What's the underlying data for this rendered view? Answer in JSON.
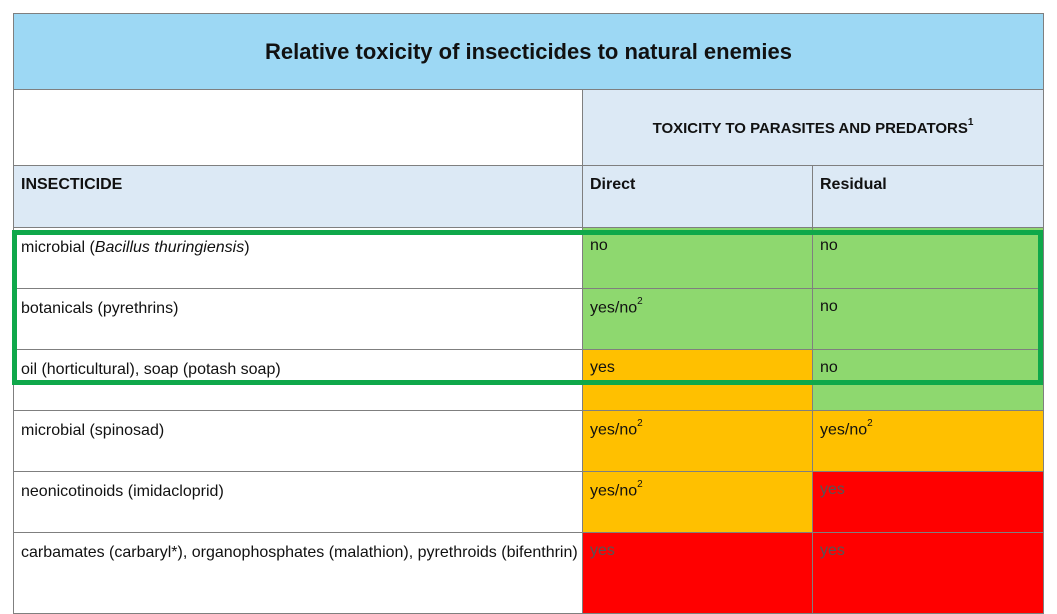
{
  "title": "Relative toxicity of insecticides to natural enemies",
  "group_header": "TOXICITY TO PARASITES AND PREDATORS",
  "group_header_note": "1",
  "columns": {
    "insecticide": "INSECTICIDE",
    "direct": "Direct",
    "residual": "Residual"
  },
  "rows": [
    {
      "name_pre": "microbial (",
      "name_italic": "Bacillus thuringiensis",
      "name_post": ")",
      "direct": "no",
      "direct_note": "",
      "direct_color": "#8ed86f",
      "residual": "no",
      "residual_note": "",
      "residual_color": "#8ed86f"
    },
    {
      "name_pre": "botanicals (pyrethrins)",
      "name_italic": "",
      "name_post": "",
      "direct": "yes/no",
      "direct_note": "2",
      "direct_color": "#8ed86f",
      "residual": "no",
      "residual_note": "",
      "residual_color": "#8ed86f"
    },
    {
      "name_pre": "oil (horticultural), soap (potash soap)",
      "name_italic": "",
      "name_post": "",
      "direct": "yes",
      "direct_note": "",
      "direct_color": "#ffc000",
      "residual": "no",
      "residual_note": "",
      "residual_color": "#8ed86f"
    },
    {
      "name_pre": "microbial (spinosad)",
      "name_italic": "",
      "name_post": "",
      "direct": "yes/no",
      "direct_note": "2",
      "direct_color": "#ffc000",
      "residual": "yes/no",
      "residual_note": "2",
      "residual_color": "#ffc000"
    },
    {
      "name_pre": "neonicotinoids (imidacloprid)",
      "name_italic": "",
      "name_post": "",
      "direct": "yes/no",
      "direct_note": "2",
      "direct_color": "#ffc000",
      "residual": "yes",
      "residual_note": "",
      "residual_color": "#ff0000"
    },
    {
      "name_pre": "carbamates (carbaryl*), organophosphates (malathion), pyrethroids (bifenthrin)",
      "name_italic": "",
      "name_post": "",
      "direct": "yes",
      "direct_note": "",
      "direct_color": "#ff0000",
      "residual": "yes",
      "residual_note": "",
      "residual_color": "#ff0000"
    }
  ],
  "highlight_color": "#0fa84a"
}
